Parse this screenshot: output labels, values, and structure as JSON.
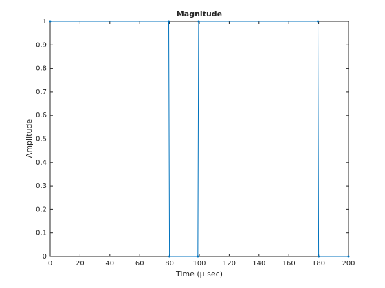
{
  "chart_data": {
    "type": "line",
    "title": "Magnitude",
    "x_label": "Time (μ sec)",
    "y_label": "Amplitude",
    "x": [
      0,
      79.5,
      80,
      99,
      99.5,
      179.5,
      180,
      200
    ],
    "series": [
      {
        "color": "#0072bd",
        "values": [
          1,
          1,
          0,
          0,
          1,
          1,
          0,
          0
        ]
      }
    ],
    "xlim": [
      0,
      200
    ],
    "xticks": [
      0,
      20,
      40,
      60,
      80,
      100,
      120,
      140,
      160,
      180,
      200
    ],
    "ylim": [
      0,
      1
    ],
    "yticks": [
      0,
      0.1,
      0.2,
      0.3,
      0.4,
      0.5,
      0.6,
      0.7,
      0.8,
      0.9,
      1
    ],
    "grid": false
  }
}
